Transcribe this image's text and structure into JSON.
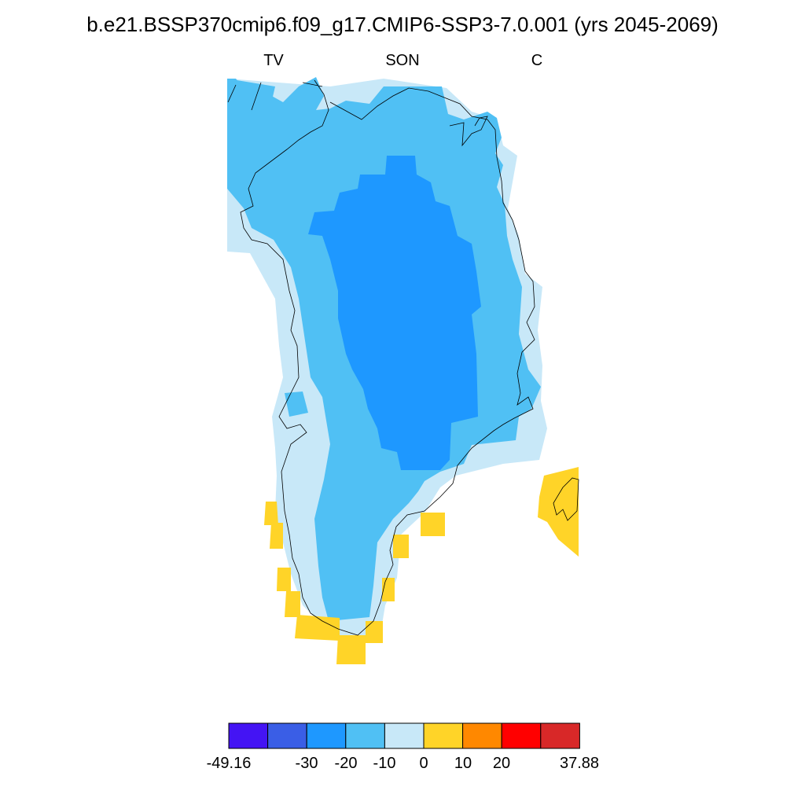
{
  "title": "b.e21.BSSP370cmip6.f09_g17.CMIP6-SSP3-7.0.001 (yrs 2045-2069)",
  "subtitle_left": "TV",
  "subtitle_center": "SON",
  "subtitle_right": "C",
  "colors": {
    "c_m40": "#4414f4",
    "c_m30": "#3a5ee6",
    "c_m20": "#1e98ff",
    "c_m10": "#50c0f4",
    "c_0": "#c8e8f8",
    "c_10": "#ffd428",
    "c_20": "#ff8800",
    "c_30": "#ff0000",
    "c_max": "#d82828"
  },
  "colorbar": {
    "bins": [
      "c_m40",
      "c_m30",
      "c_m20",
      "c_m10",
      "c_0",
      "c_10",
      "c_20",
      "c_30",
      "c_max"
    ],
    "labels": [
      "-49.16",
      "-30",
      "-20",
      "-10",
      "0",
      "10",
      "20",
      "37.88"
    ]
  }
}
